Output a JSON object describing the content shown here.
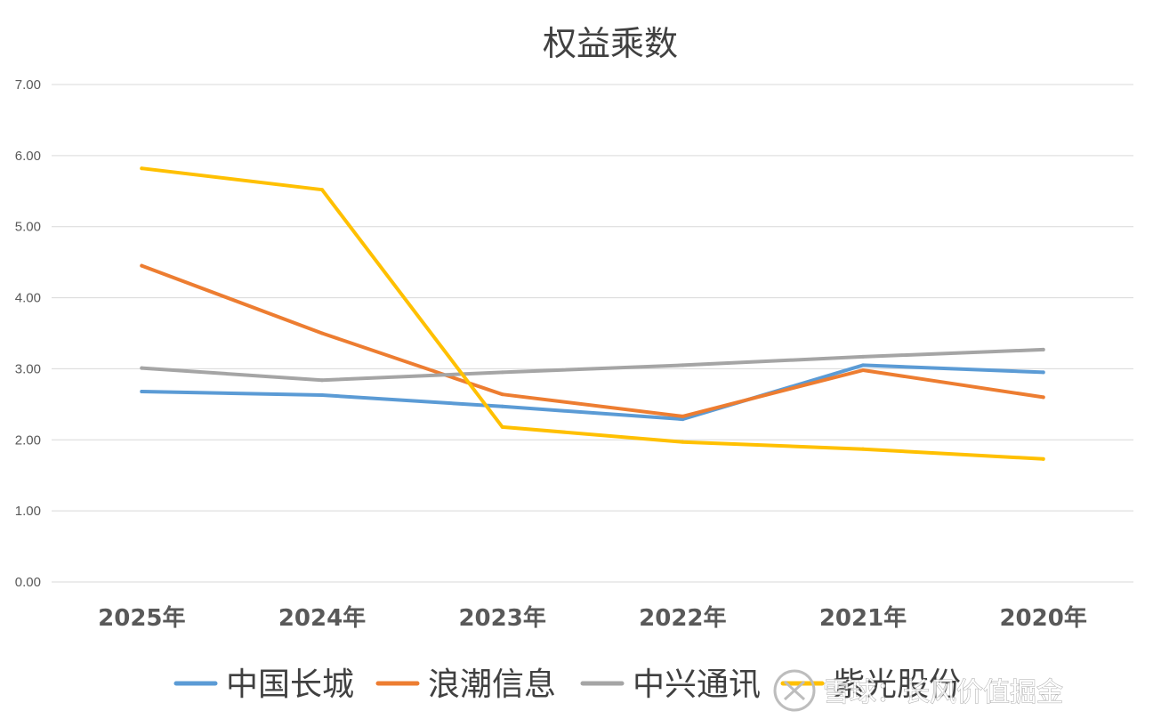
{
  "chart_data": {
    "type": "line",
    "title": "权益乘数",
    "categories": [
      "2025年",
      "2024年",
      "2023年",
      "2022年",
      "2021年",
      "2020年"
    ],
    "ylim": [
      0,
      7
    ],
    "yticks": [
      "0.00",
      "1.00",
      "2.00",
      "3.00",
      "4.00",
      "5.00",
      "6.00",
      "7.00"
    ],
    "grid": true,
    "legend_position": "bottom",
    "series": [
      {
        "name": "中国长城",
        "color": "#5B9BD5",
        "values": [
          2.68,
          2.63,
          2.47,
          2.29,
          3.05,
          2.95
        ]
      },
      {
        "name": "浪潮信息",
        "color": "#ED7D31",
        "values": [
          4.45,
          3.5,
          2.64,
          2.33,
          2.98,
          2.6
        ]
      },
      {
        "name": "中兴通讯",
        "color": "#A5A5A5",
        "values": [
          3.01,
          2.84,
          2.95,
          3.05,
          3.17,
          3.27
        ]
      },
      {
        "name": "紫光股份",
        "color": "#FFC000",
        "values": [
          5.82,
          5.52,
          2.18,
          1.97,
          1.87,
          1.73
        ]
      }
    ]
  },
  "watermark": {
    "text": "雪球：长风价值掘金",
    "icon": "snowball-logo-icon"
  }
}
